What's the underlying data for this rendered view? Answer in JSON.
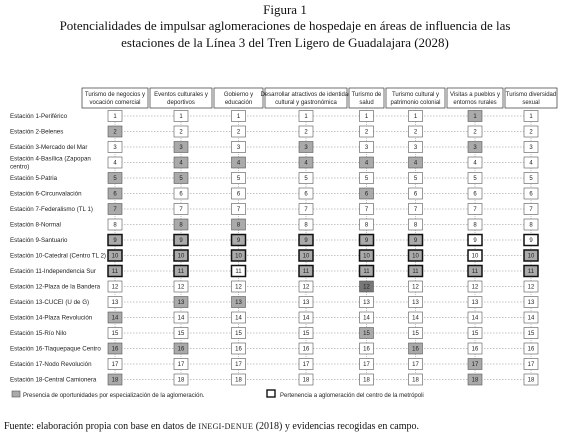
{
  "header": {
    "figure": "Figura 1",
    "title_lines": [
      "Potencialidades de impulsar aglomeraciones de hospedaje en áreas de influencia de las",
      "estaciones de la Línea 3 del Tren Ligero de Guadalajara (2028)"
    ]
  },
  "table": {
    "columns": [
      [
        "Turismo de negocios y",
        "vocación comercial"
      ],
      [
        "Eventos culturales y",
        "deportivos"
      ],
      [
        "Gobierno y",
        "educación"
      ],
      [
        "Desarrollar atractivos de identidad",
        "cultural y gastronómica"
      ],
      [
        "Turismo de",
        "salud"
      ],
      [
        "Turismo cultural y",
        "patrimonio colonial"
      ],
      [
        "Visitas a pueblos y",
        "entornos rurales"
      ],
      [
        "Turismo diversidad",
        "sexual"
      ]
    ],
    "rows": [
      {
        "label": [
          "Estación 1-Periférico"
        ],
        "number": "1",
        "shaded": [
          6
        ],
        "bold": [],
        "dark": []
      },
      {
        "label": [
          "Estación 2-Belenes"
        ],
        "number": "2",
        "shaded": [
          0
        ],
        "bold": [],
        "dark": []
      },
      {
        "label": [
          "Estación 3-Mercado del Mar"
        ],
        "number": "3",
        "shaded": [
          1,
          3,
          6
        ],
        "bold": [],
        "dark": []
      },
      {
        "label": [
          "Estación 4-Basílica (Zapopan",
          "centro)"
        ],
        "number": "4",
        "shaded": [
          1,
          2,
          3,
          4,
          5
        ],
        "bold": [],
        "dark": []
      },
      {
        "label": [
          "Estación 5-Patria"
        ],
        "number": "5",
        "shaded": [
          0,
          1
        ],
        "bold": [],
        "dark": []
      },
      {
        "label": [
          "Estación 6-Circunvalación"
        ],
        "number": "6",
        "shaded": [
          0,
          4
        ],
        "bold": [],
        "dark": []
      },
      {
        "label": [
          "Estación 7-Federalismo (TL 1)"
        ],
        "number": "7",
        "shaded": [
          0
        ],
        "bold": [],
        "dark": []
      },
      {
        "label": [
          "Estación 8-Normal"
        ],
        "number": "8",
        "shaded": [
          1,
          2
        ],
        "bold": [],
        "dark": []
      },
      {
        "label": [
          "Estación 9-Santuario"
        ],
        "number": "9",
        "shaded": [
          0,
          1,
          2,
          3,
          4,
          5
        ],
        "bold": [
          0,
          1,
          2,
          3,
          4,
          5,
          6,
          7
        ],
        "dark": []
      },
      {
        "label": [
          "Estación 10-Catedral (Centro TL 2)"
        ],
        "number": "10",
        "shaded": [
          0,
          1,
          2,
          3,
          4,
          5,
          7
        ],
        "bold": [
          0,
          1,
          2,
          3,
          4,
          5,
          6,
          7
        ],
        "dark": []
      },
      {
        "label": [
          "Estación 11-Independencia  Sur"
        ],
        "number": "11",
        "shaded": [
          0,
          1,
          3,
          4,
          5,
          6,
          7
        ],
        "bold": [
          0,
          1,
          2,
          3,
          4,
          5,
          6,
          7
        ],
        "dark": []
      },
      {
        "label": [
          "Estación 12-Plaza de la Bandera"
        ],
        "number": "12",
        "shaded": [],
        "bold": [],
        "dark": [
          4
        ]
      },
      {
        "label": [
          "Estación 13-CUCEI (U de G)"
        ],
        "number": "13",
        "shaded": [
          1,
          2
        ],
        "bold": [],
        "dark": []
      },
      {
        "label": [
          "Estación 14-Plaza Revolución"
        ],
        "number": "14",
        "shaded": [
          0
        ],
        "bold": [],
        "dark": []
      },
      {
        "label": [
          "Estación 15-Río Nilo"
        ],
        "number": "15",
        "shaded": [
          4
        ],
        "bold": [],
        "dark": []
      },
      {
        "label": [
          "Estación 16-Tlaquepaque Centro"
        ],
        "number": "16",
        "shaded": [
          0,
          1,
          5
        ],
        "bold": [],
        "dark": []
      },
      {
        "label": [
          "Estación 17-Nodo  Revolución"
        ],
        "number": "17",
        "shaded": [
          6
        ],
        "bold": [],
        "dark": []
      },
      {
        "label": [
          "Estación 18-Central Camionera"
        ],
        "number": "18",
        "shaded": [
          0,
          6
        ],
        "bold": [],
        "dark": []
      }
    ]
  },
  "legend": {
    "shaded": "Presencia de oportunidades por especialización de la aglomeración.",
    "bold": "Pertenencia a aglomeración del centro de la metrópoli"
  },
  "source": {
    "before": "Fuente: elaboración propia con base en datos de ",
    "smallcaps": "INEGI-DENUE",
    "after": " (2018) y evidencias recogidas en campo."
  }
}
